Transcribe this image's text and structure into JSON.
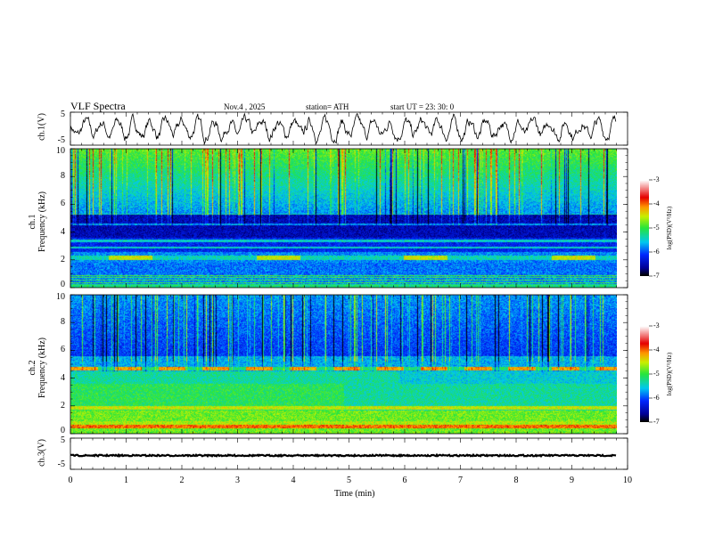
{
  "header": {
    "title": "VLF  Spectra",
    "date": "Nov.4  , 2025",
    "station": "station= ATH",
    "start": "start  UT  =    23: 30: 0"
  },
  "chart_data": [
    {
      "type": "line",
      "name": "ch1-waveform",
      "ylabel": "ch.1(V)",
      "ylim": [
        -5,
        5
      ],
      "yticks": [
        "5",
        "-5"
      ],
      "xlim": [
        0,
        10
      ]
    },
    {
      "type": "heatmap",
      "name": "ch1-spectrogram",
      "ylabel": "ch.1\nFrequency  (kHz)",
      "ylabel_line1": "ch.1",
      "ylabel_line2": "Frequency  (kHz)",
      "ylim": [
        0,
        10
      ],
      "yticks": [
        "0",
        "2",
        "4",
        "6",
        "8",
        "10"
      ],
      "xlim": [
        0,
        10
      ],
      "colorbar": {
        "label": "log(PSD)(V²/Hz)",
        "range": [
          -7,
          -3
        ],
        "ticks": [
          "-3",
          "-4",
          "-5",
          "-6",
          "-7"
        ]
      }
    },
    {
      "type": "heatmap",
      "name": "ch2-spectrogram",
      "ylabel_line1": "ch.2",
      "ylabel_line2": "Frequency  (kHz)",
      "ylim": [
        0,
        10
      ],
      "yticks": [
        "0",
        "2",
        "4",
        "6",
        "8",
        "10"
      ],
      "xlim": [
        0,
        10
      ],
      "colorbar": {
        "label": "log(PSD)(V²/Hz)",
        "range": [
          -7,
          -3
        ],
        "ticks": [
          "-3",
          "-4",
          "-5",
          "-6",
          "-7"
        ]
      }
    },
    {
      "type": "line",
      "name": "ch3-waveform",
      "ylabel": "ch.3(V)",
      "ylim": [
        -5,
        5
      ],
      "yticks": [
        "5",
        "-5"
      ],
      "xlim": [
        0,
        10
      ],
      "approx_value": -0.4
    }
  ],
  "xaxis": {
    "label": "Time  (min)",
    "ticks": [
      "0",
      "1",
      "2",
      "3",
      "4",
      "5",
      "6",
      "7",
      "8",
      "9",
      "10"
    ],
    "data_end": 9.8
  }
}
